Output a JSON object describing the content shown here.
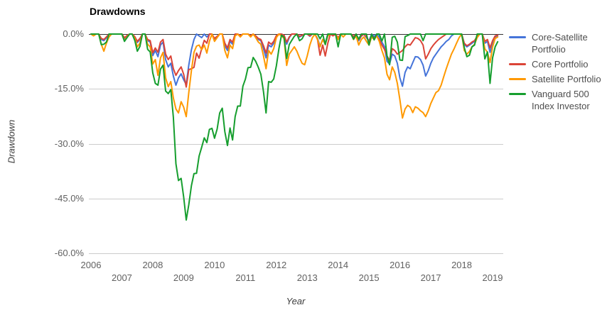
{
  "chart_data": {
    "type": "line",
    "title": "Drawdowns",
    "xlabel": "Year",
    "ylabel": "Drawdown",
    "grid": "horizontal",
    "legend_position": "right",
    "x_start_year": 2006,
    "x_step_months": 1,
    "x_ticks": [
      2006,
      2007,
      2008,
      2009,
      2010,
      2011,
      2012,
      2013,
      2014,
      2015,
      2016,
      2017,
      2018,
      2019
    ],
    "y_tick_labels": [
      "0.0%",
      "-15.0%",
      "-30.0%",
      "-45.0%",
      "-60.0%"
    ],
    "y_tick_values": [
      0,
      -15,
      -30,
      -45,
      -60
    ],
    "ylim": [
      -60,
      0
    ],
    "axis_color": "#333333",
    "gridline_color": "#cccccc",
    "series": [
      {
        "name": "Core-Satellite Portfolio",
        "color": "#4574d9",
        "values": [
          0,
          0,
          0,
          0,
          -1.5,
          -1.8,
          -1.0,
          0,
          0,
          0,
          0,
          0,
          0,
          -1.2,
          -0.5,
          0,
          0,
          -0.8,
          -2.3,
          -1.5,
          0,
          0,
          -1.8,
          -2.2,
          -5.9,
          -4.5,
          -6.2,
          -3.0,
          -2.2,
          -7.0,
          -9.0,
          -8.0,
          -11.5,
          -14.0,
          -12.0,
          -10.9,
          -12.5,
          -13.8,
          -8.5,
          -4.3,
          -1.5,
          0,
          -0.5,
          -1.0,
          0,
          -0.8,
          0,
          0,
          -1.5,
          -0.8,
          0,
          0,
          -3.2,
          -4.5,
          -2.0,
          -2.8,
          0,
          0,
          -0.5,
          0,
          0,
          0,
          -0.5,
          0,
          -0.6,
          -1.5,
          -1.8,
          -4.0,
          -6.5,
          -3.0,
          -3.5,
          -2.5,
          -0.5,
          0,
          0,
          -0.4,
          -2.8,
          -1.0,
          0,
          0,
          0,
          -0.8,
          -0.4,
          0,
          0,
          -0.6,
          0,
          0,
          -1.2,
          -3.3,
          -1.5,
          -2.5,
          0,
          0,
          0,
          0,
          -1.2,
          0,
          0,
          0,
          0,
          0,
          -0.8,
          0,
          -1.8,
          -0.6,
          0,
          -1.0,
          -1.8,
          0,
          -0.6,
          0,
          -0.8,
          -2.2,
          -3.5,
          -7.5,
          -8.2,
          -5.5,
          -6.0,
          -8.0,
          -12.0,
          -14.3,
          -10.5,
          -9.0,
          -9.5,
          -7.8,
          -6.2,
          -6.3,
          -7.0,
          -8.5,
          -11.5,
          -10.0,
          -8.0,
          -6.5,
          -5.5,
          -4.5,
          -3.5,
          -2.8,
          -2.0,
          -1.5,
          -0.5,
          0,
          0,
          0,
          0,
          -2.8,
          -3.5,
          -3.0,
          -2.5,
          -2.0,
          -0.8,
          0,
          0,
          -2.5,
          -2.0,
          -5.0,
          -2.5,
          -0.8,
          -0.5
        ]
      },
      {
        "name": "Core Portfolio",
        "color": "#db4437",
        "values": [
          0,
          0,
          0,
          0,
          -1.2,
          -1.5,
          -0.8,
          0,
          0,
          0,
          0,
          0,
          0,
          -1.0,
          -0.4,
          0,
          0,
          -0.7,
          -2.0,
          -1.2,
          0,
          0,
          -1.5,
          -1.8,
          -5.1,
          -3.8,
          -5.0,
          -2.2,
          -1.5,
          -5.5,
          -7.0,
          -6.0,
          -9.5,
          -11.3,
          -10.0,
          -9.0,
          -11.0,
          -14.5,
          -9.7,
          -9.5,
          -9.1,
          -5.2,
          -6.6,
          -4.0,
          -1.7,
          -2.5,
          0,
          0,
          -1.2,
          -0.6,
          0,
          0,
          -2.5,
          -3.8,
          -1.5,
          -2.2,
          0,
          0,
          -0.4,
          0,
          0,
          0,
          -0.4,
          0,
          -0.5,
          -1.2,
          -1.5,
          -3.2,
          -5.2,
          -2.2,
          -2.8,
          -2.0,
          -0.4,
          0,
          0,
          -0.3,
          -2.2,
          -0.8,
          0,
          0,
          0,
          -0.6,
          -0.3,
          0,
          0,
          -0.5,
          0,
          0,
          -1.5,
          -5.8,
          -3.0,
          -6.0,
          -2.5,
          0,
          -0.5,
          0,
          -1.0,
          0,
          0,
          0,
          0,
          0,
          -0.6,
          0,
          -1.5,
          -0.5,
          0,
          -0.8,
          -2.0,
          -0.5,
          -1.0,
          -0.6,
          -1.5,
          -3.0,
          -4.2,
          -6.0,
          -7.2,
          -4.0,
          -4.5,
          -5.5,
          -5.0,
          -4.5,
          -3.5,
          -2.8,
          -3.0,
          -2.0,
          -1.0,
          -1.2,
          -1.8,
          -3.0,
          -6.8,
          -5.5,
          -4.0,
          -3.0,
          -2.2,
          -1.5,
          -1.0,
          -0.5,
          0,
          0,
          0,
          0,
          0,
          0,
          0,
          -2.5,
          -3.2,
          -2.8,
          -2.2,
          -1.8,
          -0.6,
          0,
          0,
          -2.0,
          -1.5,
          -3.8,
          -1.8,
          -0.5,
          -0.3
        ]
      },
      {
        "name": "Satellite Portfolio",
        "color": "#ff9900",
        "values": [
          0,
          -0.5,
          0,
          0,
          -2.8,
          -4.7,
          -2.5,
          -0.8,
          0,
          0,
          0,
          0,
          0,
          -1.8,
          -0.8,
          0,
          0,
          -1.2,
          -3.5,
          -2.5,
          0,
          0,
          -2.8,
          -3.5,
          -8.2,
          -7.0,
          -11.3,
          -6.5,
          -5.0,
          -12.0,
          -14.4,
          -13.0,
          -17.5,
          -20.5,
          -21.6,
          -18.5,
          -20.0,
          -22.6,
          -16.0,
          -10.0,
          -5.0,
          -3.3,
          -3.0,
          -4.3,
          -3.0,
          -5.2,
          -2.0,
          0,
          -2.0,
          -1.0,
          0,
          0,
          -4.5,
          -6.5,
          -3.0,
          -4.0,
          -0.5,
          0,
          -0.8,
          0,
          0,
          0,
          -0.8,
          0,
          -1.0,
          -2.2,
          -2.8,
          -6.0,
          -9.5,
          -4.5,
          -5.5,
          -4.0,
          -1.0,
          0,
          -0.5,
          -1.2,
          -8.6,
          -5.5,
          -4.5,
          -3.5,
          -4.7,
          -6.5,
          -8.0,
          -8.4,
          -6.0,
          -3.0,
          -1.0,
          0,
          -1.5,
          -3.5,
          -1.5,
          -2.8,
          -0.5,
          0,
          0,
          0,
          -1.5,
          0,
          -0.8,
          0,
          0,
          0,
          -1.5,
          -0.5,
          -3.0,
          -1.5,
          -0.8,
          -2.0,
          -3.0,
          -0.8,
          -1.5,
          -0.5,
          -2.0,
          -4.5,
          -6.5,
          -11.0,
          -12.5,
          -9.0,
          -10.5,
          -13.5,
          -18.0,
          -23.0,
          -20.5,
          -19.5,
          -20.0,
          -21.5,
          -19.9,
          -20.3,
          -21.0,
          -21.5,
          -22.6,
          -21.0,
          -19.0,
          -17.5,
          -16.0,
          -15.5,
          -14.0,
          -11.7,
          -9.5,
          -7.5,
          -5.5,
          -4.1,
          -2.5,
          -1.0,
          0,
          -4.5,
          -5.5,
          -4.8,
          -3.5,
          -2.8,
          -1.0,
          0,
          0,
          -4.0,
          -5.0,
          -7.8,
          -3.5,
          -1.2,
          -0.8
        ]
      },
      {
        "name": "Vanguard 500 Index Investor",
        "color": "#169e2e",
        "values": [
          0,
          0,
          0,
          0,
          -2.9,
          -2.8,
          -2.2,
          0,
          0,
          0,
          0,
          0,
          0,
          -2.0,
          -1.0,
          0,
          0,
          -1.7,
          -4.7,
          -3.4,
          0,
          0,
          -4.2,
          -4.9,
          -10.6,
          -13.5,
          -14.0,
          -9.6,
          -8.5,
          -15.6,
          -16.3,
          -15.2,
          -22.8,
          -35.5,
          -40.1,
          -39.5,
          -44.6,
          -50.9,
          -46.7,
          -41.5,
          -38.2,
          -38.1,
          -33.4,
          -31.0,
          -28.4,
          -29.7,
          -26.1,
          -25.8,
          -28.5,
          -26.0,
          -21.6,
          -20.3,
          -26.7,
          -30.5,
          -25.7,
          -29.0,
          -22.6,
          -19.7,
          -19.7,
          -14.3,
          -12.3,
          -9.2,
          -9.1,
          -6.4,
          -7.5,
          -9.1,
          -11.0,
          -15.8,
          -21.6,
          -13.0,
          -13.2,
          -12.3,
          -8.7,
          -4.0,
          -0.3,
          -0.9,
          -6.7,
          -2.9,
          -1.7,
          -0.6,
          0,
          -1.8,
          -1.3,
          0,
          0,
          0,
          0,
          0,
          0,
          -1.3,
          0,
          -2.9,
          0,
          0,
          0,
          0,
          -3.5,
          0,
          0,
          0,
          0,
          0,
          -1.4,
          0,
          -1.4,
          0,
          0,
          0,
          -3.0,
          0,
          -1.6,
          0,
          0,
          -1.9,
          0,
          -6.0,
          -8.4,
          -0.9,
          -0.6,
          -2.2,
          -7.1,
          -7.2,
          -0.7,
          -0.4,
          0,
          0,
          0,
          0,
          0,
          -1.8,
          0,
          0,
          0,
          0,
          0,
          0,
          0,
          0,
          0,
          0,
          0,
          0,
          0,
          0,
          0,
          -3.7,
          -6.2,
          -5.8,
          -3.5,
          -3.0,
          0,
          0,
          0,
          -6.8,
          -4.9,
          -13.5,
          -6.5,
          -3.5,
          -2.1
        ]
      }
    ]
  }
}
